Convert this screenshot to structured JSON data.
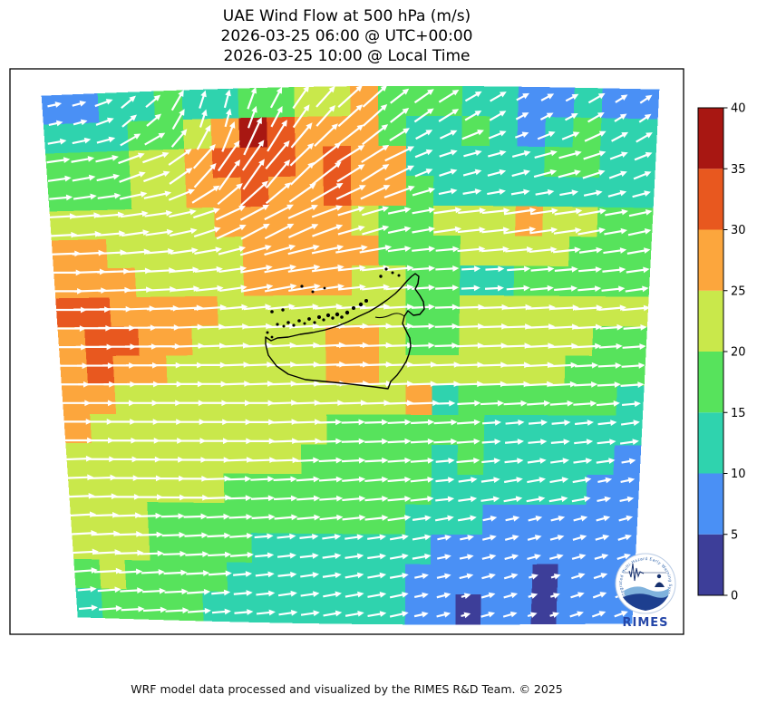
{
  "title": {
    "line1": "UAE Wind Flow at 500 hPa (m/s)",
    "line2": "2026-03-25 06:00 @ UTC+00:00",
    "line3": "2026-03-25 10:00 @ Local Time"
  },
  "footer": "WRF model data processed and visualized by the RIMES R&D Team. © 2025",
  "logo": {
    "ring_text": "Regional Integrated Multi-Hazard Early Warning System",
    "wordmark": "RIMES"
  },
  "colorbar": {
    "levels": [
      0,
      5,
      10,
      15,
      20,
      25,
      30,
      35,
      40
    ],
    "tick_labels": [
      "0",
      "5",
      "10",
      "15",
      "20",
      "25",
      "30",
      "35",
      "40"
    ],
    "colors": [
      "#3d3e99",
      "#4a90f5",
      "#2fd3ae",
      "#57e35c",
      "#c9e84b",
      "#fca63d",
      "#e8581f",
      "#a81712"
    ]
  },
  "chart_data": {
    "type": "heatmap",
    "variable": "wind speed at 500 hPa (m/s) with quiver wind-direction overlay",
    "region": "UAE and surrounding WRF model domain",
    "title": "UAE Wind Flow at 500 hPa (m/s)",
    "levels": [
      0,
      5,
      10,
      15,
      20,
      25,
      30,
      35,
      40
    ],
    "colors": [
      "#3d3e99",
      "#4a90f5",
      "#2fd3ae",
      "#57e35c",
      "#c9e84b",
      "#fca63d",
      "#e8581f",
      "#a81712"
    ],
    "arrow_color": "#ffffff",
    "outline_color": "#000000",
    "grid_cols": 22,
    "grid_rows": 18,
    "speed": [
      [
        8,
        8,
        13,
        13,
        18,
        13,
        13,
        18,
        18,
        23,
        23,
        28,
        18,
        18,
        18,
        13,
        13,
        8,
        8,
        13,
        8,
        8
      ],
      [
        13,
        13,
        13,
        18,
        18,
        23,
        28,
        38,
        33,
        28,
        28,
        28,
        18,
        13,
        13,
        18,
        13,
        8,
        13,
        18,
        13,
        13
      ],
      [
        18,
        18,
        18,
        23,
        23,
        28,
        33,
        33,
        33,
        28,
        33,
        28,
        28,
        13,
        13,
        13,
        13,
        13,
        18,
        18,
        13,
        13
      ],
      [
        18,
        18,
        18,
        23,
        23,
        28,
        28,
        33,
        28,
        28,
        33,
        28,
        28,
        18,
        13,
        13,
        13,
        13,
        13,
        13,
        13,
        13
      ],
      [
        23,
        23,
        23,
        23,
        23,
        23,
        28,
        28,
        28,
        28,
        28,
        23,
        18,
        18,
        23,
        23,
        23,
        28,
        23,
        23,
        18,
        18
      ],
      [
        28,
        28,
        23,
        23,
        23,
        23,
        23,
        28,
        28,
        28,
        28,
        28,
        18,
        18,
        18,
        23,
        23,
        23,
        23,
        18,
        18,
        18
      ],
      [
        28,
        28,
        28,
        23,
        23,
        23,
        23,
        28,
        28,
        28,
        28,
        23,
        23,
        18,
        18,
        13,
        13,
        18,
        18,
        18,
        18,
        18
      ],
      [
        33,
        33,
        28,
        28,
        28,
        28,
        23,
        23,
        23,
        23,
        23,
        23,
        23,
        18,
        18,
        23,
        23,
        23,
        23,
        23,
        23,
        23
      ],
      [
        28,
        33,
        33,
        28,
        28,
        23,
        23,
        23,
        23,
        23,
        28,
        28,
        23,
        18,
        18,
        23,
        23,
        23,
        23,
        23,
        18,
        18
      ],
      [
        28,
        33,
        28,
        28,
        23,
        23,
        23,
        23,
        23,
        23,
        28,
        28,
        23,
        23,
        23,
        23,
        23,
        23,
        23,
        18,
        18,
        18
      ],
      [
        28,
        28,
        23,
        23,
        23,
        23,
        23,
        23,
        23,
        23,
        23,
        23,
        23,
        28,
        13,
        18,
        18,
        18,
        18,
        18,
        18,
        13
      ],
      [
        28,
        23,
        23,
        23,
        23,
        23,
        23,
        23,
        23,
        23,
        18,
        18,
        18,
        18,
        18,
        18,
        13,
        13,
        13,
        13,
        13,
        13
      ],
      [
        23,
        23,
        23,
        23,
        23,
        23,
        23,
        23,
        23,
        18,
        18,
        18,
        18,
        18,
        13,
        18,
        13,
        13,
        13,
        13,
        13,
        8
      ],
      [
        23,
        23,
        23,
        23,
        23,
        23,
        18,
        18,
        18,
        18,
        18,
        18,
        18,
        18,
        13,
        13,
        13,
        13,
        13,
        13,
        8,
        8
      ],
      [
        23,
        23,
        23,
        18,
        18,
        18,
        18,
        18,
        18,
        18,
        18,
        18,
        18,
        13,
        13,
        13,
        8,
        8,
        8,
        8,
        8,
        8
      ],
      [
        23,
        23,
        23,
        18,
        18,
        18,
        18,
        13,
        13,
        13,
        13,
        13,
        13,
        13,
        8,
        8,
        8,
        8,
        8,
        8,
        8,
        8
      ],
      [
        18,
        23,
        18,
        18,
        18,
        18,
        13,
        13,
        13,
        13,
        13,
        13,
        13,
        8,
        8,
        8,
        8,
        8,
        3,
        8,
        8,
        8
      ],
      [
        13,
        18,
        18,
        18,
        18,
        13,
        13,
        13,
        13,
        13,
        13,
        13,
        13,
        8,
        8,
        3,
        8,
        8,
        3,
        8,
        8,
        8
      ]
    ],
    "direction_deg": [
      [
        12,
        15,
        20,
        40,
        60,
        72,
        75,
        70,
        62,
        55,
        48,
        42,
        38,
        35,
        32,
        30,
        30,
        28,
        28,
        30,
        32,
        34
      ],
      [
        10,
        12,
        15,
        30,
        50,
        62,
        68,
        65,
        58,
        50,
        44,
        38,
        32,
        28,
        25,
        22,
        22,
        20,
        22,
        25,
        28,
        30
      ],
      [
        8,
        10,
        12,
        20,
        35,
        48,
        55,
        55,
        50,
        44,
        38,
        32,
        26,
        22,
        18,
        15,
        15,
        15,
        15,
        18,
        20,
        22
      ],
      [
        5,
        8,
        8,
        12,
        22,
        32,
        40,
        42,
        40,
        35,
        30,
        25,
        20,
        16,
        12,
        10,
        10,
        10,
        10,
        12,
        15,
        15
      ],
      [
        3,
        5,
        5,
        8,
        12,
        18,
        25,
        28,
        27,
        24,
        20,
        16,
        12,
        10,
        8,
        6,
        6,
        8,
        8,
        10,
        10,
        12
      ],
      [
        2,
        3,
        3,
        5,
        8,
        10,
        14,
        16,
        16,
        14,
        12,
        10,
        8,
        6,
        5,
        5,
        5,
        5,
        6,
        8,
        8,
        10
      ],
      [
        0,
        2,
        2,
        3,
        5,
        6,
        8,
        10,
        10,
        9,
        8,
        6,
        5,
        4,
        3,
        3,
        3,
        4,
        5,
        5,
        6,
        8
      ],
      [
        0,
        0,
        0,
        2,
        3,
        4,
        5,
        6,
        6,
        5,
        5,
        4,
        3,
        3,
        2,
        2,
        2,
        3,
        3,
        4,
        5,
        5
      ],
      [
        0,
        0,
        0,
        0,
        2,
        2,
        3,
        3,
        3,
        3,
        3,
        2,
        2,
        2,
        2,
        2,
        2,
        2,
        3,
        3,
        4,
        4
      ],
      [
        0,
        0,
        0,
        0,
        0,
        0,
        2,
        2,
        2,
        2,
        2,
        2,
        2,
        2,
        2,
        2,
        2,
        2,
        3,
        3,
        3,
        4
      ],
      [
        0,
        0,
        0,
        0,
        0,
        0,
        0,
        0,
        2,
        2,
        2,
        2,
        2,
        2,
        2,
        3,
        3,
        3,
        4,
        4,
        5,
        5
      ],
      [
        0,
        0,
        0,
        0,
        0,
        0,
        0,
        0,
        2,
        2,
        2,
        2,
        3,
        3,
        3,
        4,
        4,
        5,
        5,
        6,
        6,
        8
      ],
      [
        2,
        0,
        0,
        0,
        0,
        0,
        2,
        2,
        2,
        3,
        3,
        3,
        4,
        4,
        5,
        5,
        6,
        6,
        8,
        8,
        8,
        10
      ],
      [
        2,
        2,
        0,
        0,
        0,
        2,
        2,
        3,
        3,
        4,
        4,
        5,
        5,
        6,
        6,
        8,
        8,
        10,
        10,
        10,
        12,
        12
      ],
      [
        3,
        2,
        2,
        2,
        2,
        3,
        3,
        4,
        5,
        5,
        6,
        6,
        8,
        8,
        10,
        10,
        12,
        12,
        14,
        14,
        15,
        15
      ],
      [
        3,
        3,
        2,
        2,
        3,
        3,
        4,
        5,
        6,
        6,
        8,
        8,
        10,
        10,
        12,
        12,
        14,
        15,
        15,
        16,
        16,
        18
      ],
      [
        4,
        3,
        3,
        3,
        3,
        4,
        5,
        6,
        6,
        8,
        8,
        10,
        10,
        12,
        12,
        14,
        15,
        16,
        16,
        18,
        18,
        18
      ],
      [
        5,
        4,
        3,
        3,
        4,
        5,
        5,
        6,
        8,
        8,
        10,
        10,
        12,
        12,
        14,
        15,
        16,
        16,
        18,
        18,
        20,
        20
      ]
    ]
  }
}
